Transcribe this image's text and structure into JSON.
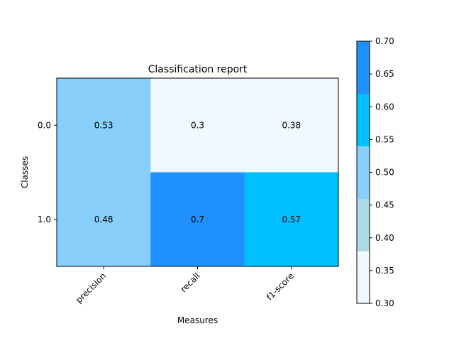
{
  "chart_data": {
    "type": "heatmap",
    "title": "Classification report",
    "xlabel": "Measures",
    "ylabel": "Classes",
    "x_categories": [
      "precision",
      "recall",
      "f1-score"
    ],
    "y_categories": [
      "0.0",
      "1.0"
    ],
    "values": [
      [
        0.53,
        0.3,
        0.38
      ],
      [
        0.48,
        0.7,
        0.57
      ]
    ],
    "cell_labels": [
      [
        "0.53",
        "0.3",
        "0.38"
      ],
      [
        "0.48",
        "0.7",
        "0.57"
      ]
    ],
    "colorbar": {
      "range": [
        0.3,
        0.7
      ],
      "ticks": [
        "0.30",
        "0.35",
        "0.40",
        "0.45",
        "0.50",
        "0.55",
        "0.60",
        "0.65",
        "0.70"
      ],
      "bins": [
        {
          "from": 0.3,
          "to": 0.38,
          "color": "#F0F8FF"
        },
        {
          "from": 0.38,
          "to": 0.46,
          "color": "#ADD8E6"
        },
        {
          "from": 0.46,
          "to": 0.54,
          "color": "#87CEFA"
        },
        {
          "from": 0.54,
          "to": 0.62,
          "color": "#00BFFF"
        },
        {
          "from": 0.62,
          "to": 0.7,
          "color": "#1E90FF"
        }
      ]
    },
    "grid": false
  }
}
